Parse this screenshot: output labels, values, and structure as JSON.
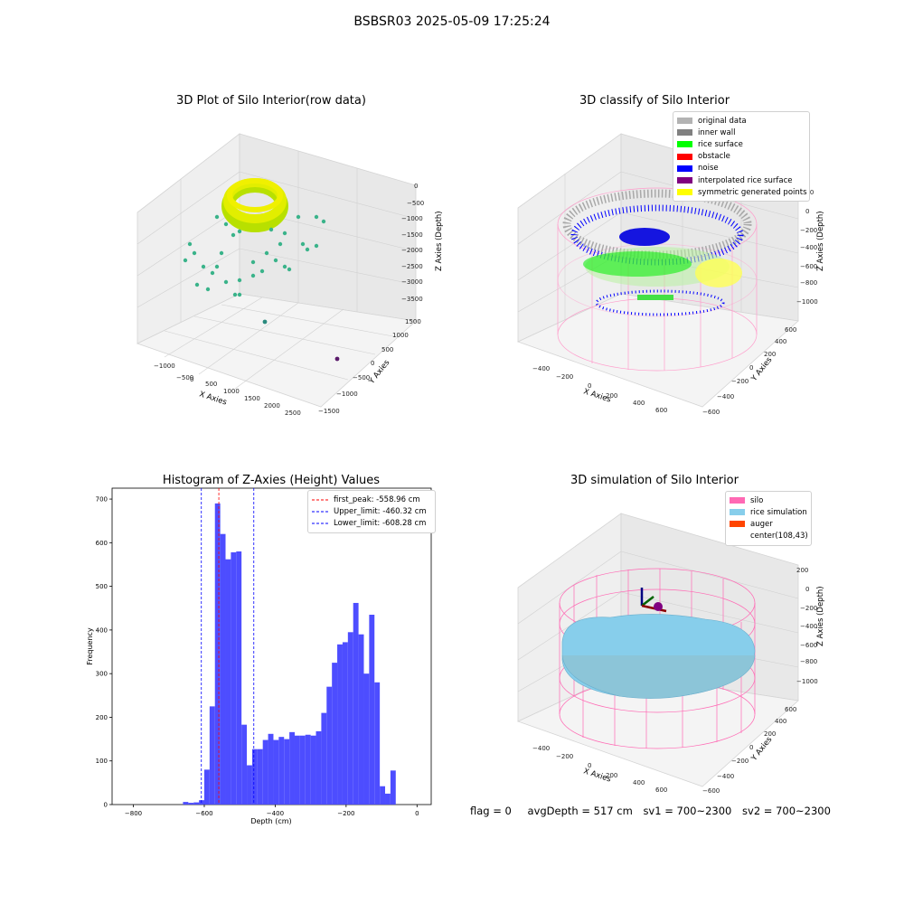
{
  "figure": {
    "suptitle": "BSBSR03 2025-05-09 17:25:24"
  },
  "panels": {
    "raw": {
      "title": "3D Plot of Silo Interior(row data)",
      "xlabel": "X Axies",
      "ylabel": "Y Axies",
      "zlabel": "Z Axies (Depth)",
      "xticks": [
        "−1000",
        "−500",
        "0",
        "500",
        "1000",
        "1500",
        "2000",
        "2500"
      ],
      "yticks": [
        "1500",
        "1000",
        "500",
        "0",
        "−500",
        "−1000",
        "−1500"
      ],
      "zticks": [
        "0",
        "−500",
        "−1000",
        "−1500",
        "−2000",
        "−2500",
        "−3000",
        "−3500"
      ]
    },
    "classify": {
      "title": "3D classify of Silo Interior",
      "xlabel": "X Axies",
      "ylabel": "Y Axies",
      "zlabel": "Z Axies (Depth)",
      "xticks": [
        "−400",
        "−200",
        "0",
        "200",
        "400",
        "600"
      ],
      "yticks": [
        "600",
        "400",
        "200",
        "0",
        "−200",
        "−400",
        "−600"
      ],
      "zticks": [
        "200",
        "0",
        "−200",
        "−400",
        "−600",
        "−800",
        "−1000"
      ],
      "legend": [
        {
          "label": "original data",
          "color": "#b3b3b3"
        },
        {
          "label": "inner wall",
          "color": "#808080"
        },
        {
          "label": "rice surface",
          "color": "#00ff00"
        },
        {
          "label": "obstacle",
          "color": "#ff0000"
        },
        {
          "label": "noise",
          "color": "#0000ff"
        },
        {
          "label": "interpolated rice surface",
          "color": "#800080"
        },
        {
          "label": "symmetric generated points",
          "color": "#ffff00"
        }
      ]
    },
    "simulation": {
      "title": "3D simulation of Silo Interior",
      "xlabel": "X Axies",
      "ylabel": "Y Axies",
      "zlabel": "Z Axies (Depth)",
      "xticks": [
        "−400",
        "−200",
        "0",
        "200",
        "400",
        "600"
      ],
      "yticks": [
        "600",
        "400",
        "200",
        "0",
        "−200",
        "−400",
        "−600"
      ],
      "zticks": [
        "200",
        "0",
        "−200",
        "−400",
        "−600",
        "−800",
        "−1000"
      ],
      "legend": [
        {
          "label": "silo",
          "color": "#ff69b4"
        },
        {
          "label": "rice simulation",
          "color": "#87ceeb"
        },
        {
          "label": "auger",
          "color": "#ff4500"
        },
        {
          "label": "center(108,43)",
          "color": ""
        }
      ]
    }
  },
  "status": {
    "flag": "flag = 0",
    "avg_depth": "avgDepth = 517 cm",
    "sv1": "sv1 = 700~2300",
    "sv2": "sv2 = 700~2300"
  },
  "chart_data": {
    "type": "bar",
    "title": "Histogram of Z-Axies (Height) Values",
    "xlabel": "Depth (cm)",
    "ylabel": "Frequency",
    "xlim": [
      -860,
      40
    ],
    "ylim": [
      0,
      725
    ],
    "xticks": [
      -800,
      -600,
      -400,
      -200,
      0
    ],
    "xtick_labels": [
      "−800",
      "−600",
      "−400",
      "−200",
      "0"
    ],
    "yticks": [
      0,
      100,
      200,
      300,
      400,
      500,
      600,
      700
    ],
    "color": "#4d4dff",
    "bin_width": 15,
    "bins": [
      {
        "x0": -660,
        "count": 6
      },
      {
        "x0": -645,
        "count": 4
      },
      {
        "x0": -630,
        "count": 5
      },
      {
        "x0": -615,
        "count": 10
      },
      {
        "x0": -600,
        "count": 80
      },
      {
        "x0": -585,
        "count": 225
      },
      {
        "x0": -570,
        "count": 690
      },
      {
        "x0": -555,
        "count": 620
      },
      {
        "x0": -540,
        "count": 562
      },
      {
        "x0": -525,
        "count": 578
      },
      {
        "x0": -510,
        "count": 580
      },
      {
        "x0": -495,
        "count": 183
      },
      {
        "x0": -480,
        "count": 90
      },
      {
        "x0": -465,
        "count": 127
      },
      {
        "x0": -450,
        "count": 127
      },
      {
        "x0": -435,
        "count": 148
      },
      {
        "x0": -420,
        "count": 162
      },
      {
        "x0": -405,
        "count": 148
      },
      {
        "x0": -390,
        "count": 155
      },
      {
        "x0": -375,
        "count": 150
      },
      {
        "x0": -360,
        "count": 166
      },
      {
        "x0": -345,
        "count": 158
      },
      {
        "x0": -330,
        "count": 158
      },
      {
        "x0": -315,
        "count": 160
      },
      {
        "x0": -300,
        "count": 158
      },
      {
        "x0": -285,
        "count": 168
      },
      {
        "x0": -270,
        "count": 210
      },
      {
        "x0": -255,
        "count": 270
      },
      {
        "x0": -240,
        "count": 325
      },
      {
        "x0": -225,
        "count": 367
      },
      {
        "x0": -210,
        "count": 372
      },
      {
        "x0": -195,
        "count": 395
      },
      {
        "x0": -180,
        "count": 462
      },
      {
        "x0": -165,
        "count": 390
      },
      {
        "x0": -150,
        "count": 300
      },
      {
        "x0": -135,
        "count": 435
      },
      {
        "x0": -120,
        "count": 280
      },
      {
        "x0": -105,
        "count": 42
      },
      {
        "x0": -90,
        "count": 25
      },
      {
        "x0": -75,
        "count": 78
      }
    ],
    "lines": [
      {
        "label": "first_peak: -558.96 cm",
        "x": -558.96,
        "color": "#ff0000"
      },
      {
        "label": "Upper_limit: -460.32 cm",
        "x": -460.32,
        "color": "#0000ff"
      },
      {
        "label": "Lower_limit: -608.28 cm",
        "x": -608.28,
        "color": "#0000ff"
      }
    ],
    "legend_position": "top-right",
    "grid": false
  }
}
